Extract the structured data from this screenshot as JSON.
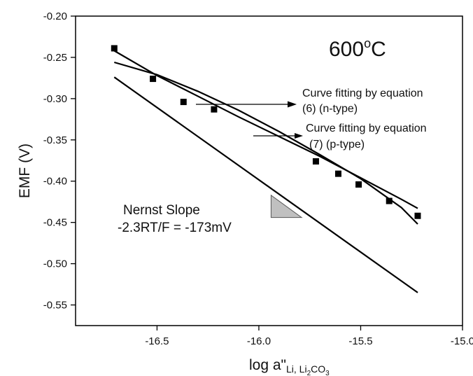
{
  "chart_data": {
    "type": "scatter",
    "title": "",
    "xlabel": "log a\"",
    "xlabel_subscript": "Li, Li",
    "xlabel_subscript_tail": "CO",
    "xlabel_sub2": "2",
    "xlabel_sub3": "3",
    "ylabel": "EMF (V)",
    "xlim": [
      -16.9,
      -15.0
    ],
    "ylim": [
      -0.575,
      -0.2
    ],
    "xticks": [
      -16.5,
      -16.0,
      -15.5,
      -15.0
    ],
    "xtick_labels": [
      "-16.5",
      "-16.0",
      "-15.5",
      "-15.0"
    ],
    "yticks": [
      -0.2,
      -0.25,
      -0.3,
      -0.35,
      -0.4,
      -0.45,
      -0.5,
      -0.55
    ],
    "ytick_labels": [
      "-0.20",
      "-0.25",
      "-0.30",
      "-0.35",
      "-0.40",
      "-0.45",
      "-0.50",
      "-0.55"
    ],
    "grid": false,
    "legend": "none",
    "series": [
      {
        "kind": "markers",
        "marker": "square",
        "color": "#000000",
        "x": [
          -16.71,
          -16.52,
          -16.37,
          -16.22,
          -15.72,
          -15.61,
          -15.51,
          -15.36,
          -15.22
        ],
        "y": [
          -0.239,
          -0.276,
          -0.304,
          -0.313,
          -0.376,
          -0.391,
          -0.404,
          -0.424,
          -0.442
        ]
      },
      {
        "kind": "line",
        "name": "Curve fitting by equation (6) (n-type)",
        "color": "#000000",
        "x": [
          -16.71,
          -16.5,
          -16.3,
          -16.1,
          -15.9,
          -15.7,
          -15.5,
          -15.3,
          -15.22
        ],
        "y": [
          -0.242,
          -0.272,
          -0.297,
          -0.322,
          -0.346,
          -0.37,
          -0.396,
          -0.422,
          -0.433
        ]
      },
      {
        "kind": "line",
        "name": "Curve fitting by equation (7) (p-type)",
        "color": "#000000",
        "x": [
          -16.71,
          -16.5,
          -16.3,
          -16.1,
          -15.9,
          -15.7,
          -15.5,
          -15.3,
          -15.22
        ],
        "y": [
          -0.256,
          -0.271,
          -0.291,
          -0.314,
          -0.34,
          -0.368,
          -0.397,
          -0.432,
          -0.452
        ]
      },
      {
        "kind": "line",
        "name": "Nernst Slope",
        "color": "#000000",
        "x": [
          -16.71,
          -15.22
        ],
        "y": [
          -0.274,
          -0.535
        ]
      }
    ],
    "slope_triangle": {
      "x": [
        -15.94,
        -15.79
      ],
      "y": [
        -0.417,
        -0.444
      ],
      "fill": "#c0c0c0"
    },
    "annotations": {
      "temperature_main": "600",
      "temperature_sup": "o",
      "temperature_unit": "C",
      "arrow6_line1": "Curve fitting by equation",
      "arrow6_line2": "(6) (n-type)",
      "arrow7_line1": "Curve fitting by equation",
      "arrow7_line2": "(7) (p-type)",
      "nernst_line1": "Nernst Slope",
      "nernst_line2": "-2.3RT/F = -173mV"
    }
  }
}
